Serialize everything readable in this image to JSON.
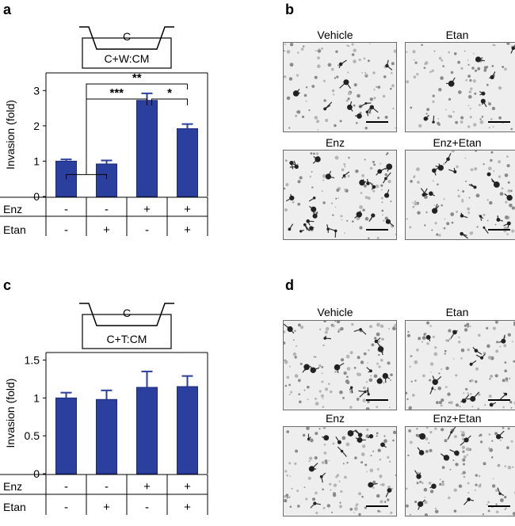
{
  "panel_labels": {
    "a": "a",
    "b": "b",
    "c": "c",
    "d": "d"
  },
  "colors": {
    "bar": "#2b3f9e",
    "bar_edge": "#1c2a78",
    "axis": "#000000"
  },
  "chart_data": [
    {
      "id": "a",
      "type": "bar",
      "ylabel": "Invasion (fold)",
      "ylim": [
        0,
        3.5
      ],
      "yticks": [
        "0",
        "1",
        "2",
        "3"
      ],
      "categories": [
        "Vehicle",
        "Etan",
        "Enz",
        "Enz+Etan"
      ],
      "values": [
        1.0,
        0.92,
        2.72,
        1.92
      ],
      "errors": [
        0.05,
        0.1,
        0.2,
        0.13
      ],
      "condition_rows": [
        {
          "label": "Enz",
          "signs": [
            "-",
            "-",
            "+",
            "+"
          ]
        },
        {
          "label": "Etan",
          "signs": [
            "-",
            "+",
            "-",
            "+"
          ]
        }
      ],
      "schematic": {
        "chamber": "C",
        "medium": "C+W:CM"
      },
      "significance": [
        {
          "label": "**",
          "from": "bracket(0-1)",
          "to": 3
        },
        {
          "label": "***",
          "from": "bracket(0-1)",
          "to": 2
        },
        {
          "label": "*",
          "from": 2,
          "to": 3
        }
      ]
    },
    {
      "id": "c",
      "type": "bar",
      "ylabel": "Invasion (fold)",
      "ylim": [
        0,
        1.6
      ],
      "yticks": [
        "0",
        "0.5",
        "1",
        "1.5"
      ],
      "categories": [
        "Vehicle",
        "Etan",
        "Enz",
        "Enz+Etan"
      ],
      "values": [
        1.0,
        0.98,
        1.14,
        1.15
      ],
      "errors": [
        0.07,
        0.12,
        0.21,
        0.14
      ],
      "condition_rows": [
        {
          "label": "Enz",
          "signs": [
            "-",
            "-",
            "+",
            "+"
          ]
        },
        {
          "label": "Etan",
          "signs": [
            "-",
            "+",
            "-",
            "+"
          ]
        }
      ],
      "schematic": {
        "chamber": "C",
        "medium": "C+T:CM"
      }
    }
  ],
  "micrographs": {
    "b": [
      "Vehicle",
      "Etan",
      "Enz",
      "Enz+Etan"
    ],
    "d": [
      "Vehicle",
      "Etan",
      "Enz",
      "Enz+Etan"
    ]
  }
}
